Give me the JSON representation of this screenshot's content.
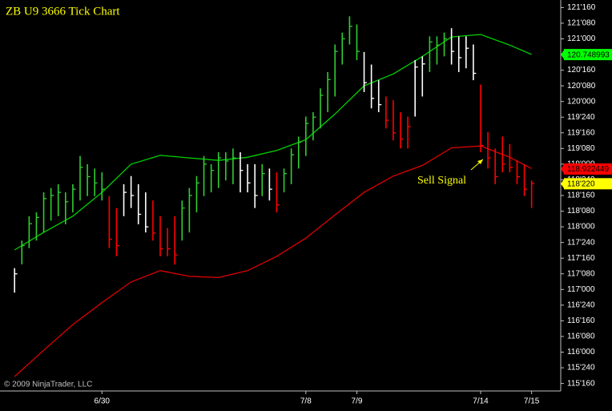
{
  "chart_data": {
    "type": "ohlc",
    "title": "ZB U9 3666 Tick Chart",
    "annotation": "Sell Signal",
    "copyright": "© 2009 NinjaTrader, LLC",
    "xlim": [
      -2,
      75
    ],
    "ylim": [
      115.38,
      121.62
    ],
    "xticks": [
      {
        "value": 12,
        "label": "6/30"
      },
      {
        "value": 40,
        "label": "7/8"
      },
      {
        "value": 47,
        "label": "7/9"
      },
      {
        "value": 64,
        "label": "7/14"
      },
      {
        "value": 71,
        "label": "7/15"
      }
    ],
    "yticks": [
      {
        "value": 115.5,
        "label": "115'160"
      },
      {
        "value": 115.75,
        "label": "115'240"
      },
      {
        "value": 116,
        "label": "116'000"
      },
      {
        "value": 116.25,
        "label": "116'080"
      },
      {
        "value": 116.5,
        "label": "116'160"
      },
      {
        "value": 116.75,
        "label": "116'240"
      },
      {
        "value": 117,
        "label": "117'000"
      },
      {
        "value": 117.25,
        "label": "117'080"
      },
      {
        "value": 117.5,
        "label": "117'160"
      },
      {
        "value": 117.75,
        "label": "117'240"
      },
      {
        "value": 118,
        "label": "118'000"
      },
      {
        "value": 118.25,
        "label": "118'080"
      },
      {
        "value": 118.5,
        "label": "118'160"
      },
      {
        "value": 118.75,
        "label": "118'240"
      },
      {
        "value": 119,
        "label": "119'000"
      },
      {
        "value": 119.25,
        "label": "119'080"
      },
      {
        "value": 119.5,
        "label": "119'160"
      },
      {
        "value": 119.75,
        "label": "119'240"
      },
      {
        "value": 120,
        "label": "120'000"
      },
      {
        "value": 120.25,
        "label": "120'080"
      },
      {
        "value": 120.5,
        "label": "120'160"
      },
      {
        "value": 120.75,
        "label": "120'240"
      },
      {
        "value": 121,
        "label": "121'000"
      },
      {
        "value": 121.25,
        "label": "121'080"
      },
      {
        "value": 121.5,
        "label": "121'160"
      }
    ],
    "bars": {
      "x": [
        0,
        1,
        2,
        3,
        4,
        5,
        6,
        7,
        8,
        9,
        10,
        11,
        12,
        13,
        14,
        15,
        16,
        17,
        18,
        19,
        20,
        21,
        22,
        23,
        24,
        25,
        26,
        27,
        28,
        29,
        30,
        31,
        32,
        33,
        34,
        35,
        36,
        37,
        38,
        39,
        40,
        41,
        42,
        43,
        44,
        45,
        46,
        47,
        48,
        49,
        50,
        51,
        52,
        53,
        54,
        55,
        56,
        57,
        58,
        59,
        60,
        61,
        62,
        63,
        64,
        65,
        66,
        67,
        68,
        69,
        70,
        71
      ],
      "high": [
        117.34,
        117.78,
        118.17,
        118.23,
        118.55,
        118.62,
        118.68,
        118.55,
        118.68,
        119.13,
        119.0,
        118.93,
        118.87,
        118.49,
        118.3,
        118.68,
        118.81,
        118.68,
        118.55,
        118.42,
        118.17,
        117.98,
        118.17,
        118.42,
        118.62,
        118.81,
        119.13,
        119.0,
        119.19,
        119.19,
        119.25,
        119.19,
        119.0,
        119.0,
        119.0,
        118.93,
        118.87,
        118.93,
        119.25,
        119.44,
        119.76,
        119.83,
        120.21,
        120.47,
        120.91,
        121.1,
        121.36,
        121.23,
        120.79,
        120.59,
        120.34,
        120.08,
        120.02,
        119.83,
        119.76,
        120.66,
        120.72,
        121.04,
        121.04,
        121.1,
        121.17,
        121.04,
        121.04,
        120.91,
        120.27,
        119.51,
        119.25,
        119.44,
        119.32,
        119.06,
        119.0,
        118.74
      ],
      "low": [
        116.95,
        117.4,
        117.66,
        117.78,
        117.91,
        118.1,
        118.17,
        118.04,
        118.23,
        118.42,
        118.49,
        118.49,
        118.42,
        117.66,
        117.53,
        118.17,
        118.3,
        118.04,
        117.91,
        117.78,
        117.53,
        117.53,
        117.4,
        117.78,
        117.91,
        118.23,
        118.49,
        118.55,
        118.62,
        118.74,
        118.68,
        118.55,
        118.55,
        118.3,
        118.49,
        118.42,
        118.23,
        118.55,
        118.68,
        118.93,
        119.13,
        119.38,
        119.57,
        119.83,
        120.08,
        120.59,
        120.91,
        120.66,
        120.15,
        119.89,
        119.83,
        119.57,
        119.38,
        119.25,
        119.25,
        119.76,
        120.08,
        120.47,
        120.59,
        120.72,
        120.59,
        120.47,
        120.53,
        120.34,
        119.19,
        118.93,
        118.68,
        118.87,
        118.87,
        118.68,
        118.49,
        118.3
      ],
      "close": [
        117.25,
        117.7,
        118.05,
        118.15,
        118.45,
        118.5,
        118.55,
        118.4,
        118.6,
        118.95,
        118.8,
        118.7,
        118.6,
        117.8,
        117.7,
        118.55,
        118.5,
        118.2,
        118.0,
        117.9,
        117.65,
        117.65,
        117.55,
        118.3,
        118.5,
        118.7,
        119.0,
        118.9,
        119.1,
        119.05,
        119.1,
        118.9,
        118.7,
        118.5,
        118.85,
        118.6,
        118.35,
        118.85,
        119.15,
        119.35,
        119.65,
        119.75,
        120.1,
        120.35,
        120.8,
        121.0,
        121.2,
        120.8,
        120.3,
        120.05,
        119.95,
        119.7,
        119.5,
        119.4,
        119.6,
        120.55,
        120.6,
        120.95,
        120.9,
        121.0,
        120.8,
        120.7,
        120.85,
        120.45,
        119.3,
        119.1,
        118.8,
        119.0,
        118.95,
        118.8,
        118.6,
        118.69
      ],
      "colors": [
        "white",
        "limegreen",
        "limegreen",
        "limegreen",
        "limegreen",
        "limegreen",
        "limegreen",
        "limegreen",
        "limegreen",
        "limegreen",
        "limegreen",
        "limegreen",
        "limegreen",
        "red",
        "red",
        "white",
        "white",
        "white",
        "white",
        "red",
        "red",
        "red",
        "red",
        "limegreen",
        "limegreen",
        "limegreen",
        "limegreen",
        "limegreen",
        "limegreen",
        "limegreen",
        "limegreen",
        "white",
        "white",
        "white",
        "limegreen",
        "white",
        "red",
        "limegreen",
        "limegreen",
        "limegreen",
        "limegreen",
        "limegreen",
        "limegreen",
        "limegreen",
        "limegreen",
        "limegreen",
        "limegreen",
        "limegreen",
        "white",
        "white",
        "white",
        "red",
        "red",
        "red",
        "red",
        "white",
        "white",
        "limegreen",
        "limegreen",
        "limegreen",
        "white",
        "white",
        "white",
        "white",
        "red",
        "red",
        "red",
        "red",
        "red",
        "red",
        "red",
        "red"
      ]
    },
    "series": [
      {
        "color": "#00d000",
        "x": [
          0,
          4,
          8,
          12,
          16,
          20,
          24,
          28,
          32,
          36,
          40,
          44,
          48,
          52,
          56,
          60,
          64,
          68,
          71
        ],
        "values": [
          117.63,
          117.91,
          118.17,
          118.55,
          119.0,
          119.14,
          119.1,
          119.06,
          119.11,
          119.22,
          119.39,
          119.8,
          120.25,
          120.44,
          120.72,
          121.03,
          121.07,
          120.9,
          120.75
        ]
      },
      {
        "color": "#e00000",
        "x": [
          0,
          4,
          8,
          12,
          16,
          20,
          24,
          28,
          32,
          36,
          40,
          44,
          48,
          52,
          56,
          60,
          64,
          68,
          71
        ],
        "values": [
          115.61,
          116.03,
          116.44,
          116.79,
          117.12,
          117.3,
          117.21,
          117.19,
          117.3,
          117.53,
          117.82,
          118.19,
          118.55,
          118.81,
          118.98,
          119.26,
          119.29,
          119.11,
          118.93
        ]
      }
    ],
    "price_markers": [
      {
        "value": 120.748993,
        "color": "#00ff00"
      },
      {
        "value": 118.922449,
        "color": "#ff0000"
      },
      {
        "value": 118.6875,
        "label": "118'220",
        "color": "#ffff00"
      }
    ]
  }
}
